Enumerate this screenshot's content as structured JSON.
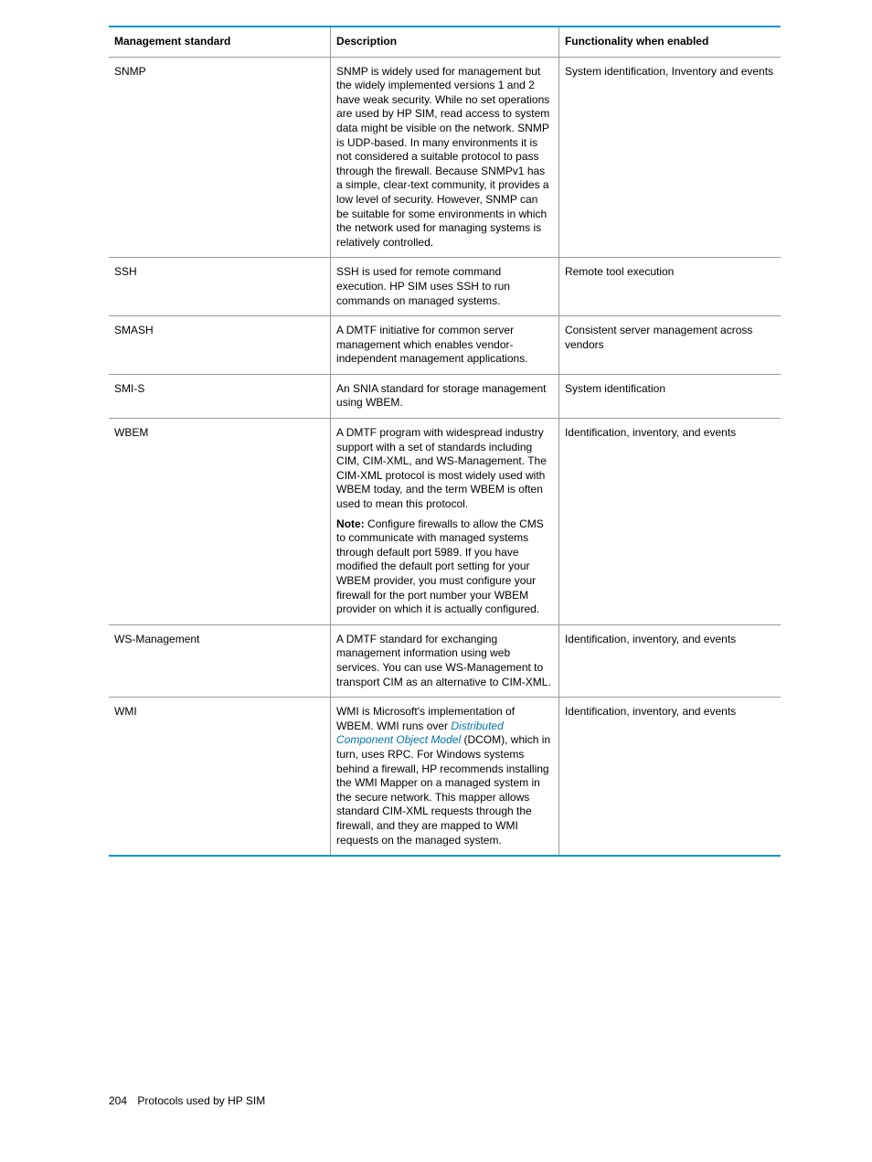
{
  "table": {
    "headers": {
      "standard": "Management standard",
      "description": "Description",
      "functionality": "Functionality when enabled"
    },
    "rows": [
      {
        "standard": "SNMP",
        "description_html": "SNMP is widely used for management but the widely implemented versions 1 and 2 have weak security. While no set operations are used by HP SIM, read access to system data might be visible on the network. SNMP is UDP-based. In many environments it is not considered a suitable protocol to pass through the firewall. Because SNMPv1 has a simple, clear-text community,  it provides a low level of security. However, SNMP can be suitable for some environments in which the network used for managing systems is relatively controlled.",
        "functionality": "System identification, Inventory and events"
      },
      {
        "standard": "SSH",
        "description_html": "SSH is used for remote command execution. HP SIM uses SSH to run commands on managed systems.",
        "functionality": "Remote tool execution"
      },
      {
        "standard": "SMASH",
        "description_html": "A DMTF initiative for common server management which enables vendor-independent management applications.",
        "functionality": "Consistent server management across vendors"
      },
      {
        "standard": "SMI-S",
        "description_html": "An SNIA standard for storage management using WBEM.",
        "functionality": "System identification"
      },
      {
        "standard": "WBEM",
        "description_html": "<p>A DMTF program with widespread industry support with a set of standards including CIM, CIM-XML, and WS-Management. The CIM-XML protocol is most widely used with WBEM today, and the term WBEM is often used to mean this protocol.</p><p><span class=\"note-label\">Note:</span> Configure firewalls to allow the CMS to communicate with managed systems through default port 5989. If you have modified the default port setting for your WBEM provider, you must configure your firewall for the port number your WBEM provider on which it is actually configured.</p>",
        "functionality": "Identification, inventory, and events"
      },
      {
        "standard": "WS-Management",
        "description_html": "A DMTF standard for exchanging management information using web services. You can use WS-Management to transport CIM as an alternative to CIM-XML.",
        "functionality": "Identification, inventory, and events"
      },
      {
        "standard": "WMI",
        "description_html": "WMI is Microsoft's implementation of WBEM. WMI runs over <span class=\"link\">Distributed Component Object Model</span> (DCOM), which in turn, uses RPC. For Windows systems behind a firewall, HP recommends installing the WMI Mapper on a managed system in the secure network. This mapper allows standard CIM-XML requests through the firewall, and they are mapped to WMI requests on the managed system.",
        "functionality": "Identification, inventory, and events"
      }
    ]
  },
  "footer": {
    "page_number": "204",
    "section_title": "Protocols used by HP SIM"
  },
  "colors": {
    "accent": "#0096d6",
    "link": "#0073a8",
    "border": "#999999"
  }
}
